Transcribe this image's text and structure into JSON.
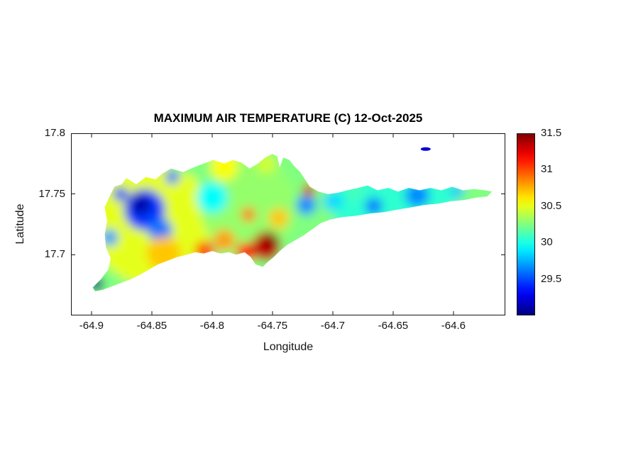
{
  "figure": {
    "background": "#ffffff",
    "axis_color": "#151515"
  },
  "chart_data": {
    "type": "heatmap",
    "title": "MAXIMUM AIR TEMPERATURE (C) 12-Oct-2025",
    "date": "12-Oct-2025",
    "xlabel": "Longitude",
    "ylabel": "Latitude",
    "xlim": [
      -64.917,
      -64.557
    ],
    "ylim": [
      17.65,
      17.8
    ],
    "grid": false,
    "xticks": {
      "values": [
        -64.9,
        -64.85,
        -64.8,
        -64.75,
        -64.7,
        -64.65,
        -64.6
      ],
      "labels": [
        "-64.9",
        "-64.85",
        "-64.8",
        "-64.75",
        "-64.7",
        "-64.65",
        "-64.6"
      ]
    },
    "yticks": {
      "values": [
        17.7,
        17.75,
        17.8
      ],
      "labels": [
        "17.7",
        "17.75",
        "17.8"
      ]
    },
    "colorbar": {
      "range": [
        29,
        31.5
      ],
      "colormap": "jet",
      "position": "right",
      "ticks": {
        "values": [
          29.5,
          30,
          30.5,
          31,
          31.5
        ],
        "labels": [
          "29.5",
          "30",
          "30.5",
          "31",
          "31.5"
        ]
      }
    },
    "base_temp": 30.25,
    "island_outline": [
      [
        -64.899,
        17.673
      ],
      [
        -64.892,
        17.68
      ],
      [
        -64.886,
        17.688
      ],
      [
        -64.884,
        17.697
      ],
      [
        -64.888,
        17.706
      ],
      [
        -64.889,
        17.717
      ],
      [
        -64.887,
        17.728
      ],
      [
        -64.889,
        17.739
      ],
      [
        -64.885,
        17.748
      ],
      [
        -64.881,
        17.756
      ],
      [
        -64.875,
        17.758
      ],
      [
        -64.871,
        17.763
      ],
      [
        -64.863,
        17.758
      ],
      [
        -64.855,
        17.764
      ],
      [
        -64.847,
        17.762
      ],
      [
        -64.841,
        17.767
      ],
      [
        -64.834,
        17.771
      ],
      [
        -64.824,
        17.768
      ],
      [
        -64.815,
        17.772
      ],
      [
        -64.807,
        17.775
      ],
      [
        -64.799,
        17.778
      ],
      [
        -64.79,
        17.775
      ],
      [
        -64.783,
        17.778
      ],
      [
        -64.776,
        17.776
      ],
      [
        -64.769,
        17.771
      ],
      [
        -64.762,
        17.775
      ],
      [
        -64.756,
        17.78
      ],
      [
        -64.75,
        17.783
      ],
      [
        -64.746,
        17.781
      ],
      [
        -64.744,
        17.772
      ],
      [
        -64.741,
        17.78
      ],
      [
        -64.736,
        17.778
      ],
      [
        -64.732,
        17.773
      ],
      [
        -64.727,
        17.768
      ],
      [
        -64.723,
        17.762
      ],
      [
        -64.719,
        17.756
      ],
      [
        -64.712,
        17.752
      ],
      [
        -64.704,
        17.75
      ],
      [
        -64.696,
        17.751
      ],
      [
        -64.688,
        17.753
      ],
      [
        -64.679,
        17.755
      ],
      [
        -64.671,
        17.757
      ],
      [
        -64.663,
        17.753
      ],
      [
        -64.654,
        17.755
      ],
      [
        -64.646,
        17.752
      ],
      [
        -64.637,
        17.755
      ],
      [
        -64.628,
        17.753
      ],
      [
        -64.619,
        17.755
      ],
      [
        -64.61,
        17.753
      ],
      [
        -64.601,
        17.756
      ],
      [
        -64.592,
        17.753
      ],
      [
        -64.583,
        17.754
      ],
      [
        -64.574,
        17.753
      ],
      [
        -64.568,
        17.752
      ],
      [
        -64.572,
        17.748
      ],
      [
        -64.581,
        17.747
      ],
      [
        -64.591,
        17.745
      ],
      [
        -64.602,
        17.744
      ],
      [
        -64.613,
        17.742
      ],
      [
        -64.624,
        17.741
      ],
      [
        -64.635,
        17.739
      ],
      [
        -64.647,
        17.737
      ],
      [
        -64.658,
        17.735
      ],
      [
        -64.669,
        17.734
      ],
      [
        -64.681,
        17.732
      ],
      [
        -64.692,
        17.731
      ],
      [
        -64.702,
        17.729
      ],
      [
        -64.71,
        17.726
      ],
      [
        -64.717,
        17.721
      ],
      [
        -64.724,
        17.716
      ],
      [
        -64.731,
        17.712
      ],
      [
        -64.738,
        17.708
      ],
      [
        -64.744,
        17.703
      ],
      [
        -64.749,
        17.698
      ],
      [
        -64.754,
        17.694
      ],
      [
        -64.758,
        17.69
      ],
      [
        -64.764,
        17.692
      ],
      [
        -64.768,
        17.698
      ],
      [
        -64.773,
        17.702
      ],
      [
        -64.78,
        17.7
      ],
      [
        -64.786,
        17.702
      ],
      [
        -64.793,
        17.701
      ],
      [
        -64.8,
        17.703
      ],
      [
        -64.807,
        17.701
      ],
      [
        -64.814,
        17.702
      ],
      [
        -64.821,
        17.7
      ],
      [
        -64.829,
        17.698
      ],
      [
        -64.837,
        17.695
      ],
      [
        -64.845,
        17.692
      ],
      [
        -64.852,
        17.688
      ],
      [
        -64.859,
        17.684
      ],
      [
        -64.867,
        17.68
      ],
      [
        -64.875,
        17.677
      ],
      [
        -64.883,
        17.674
      ],
      [
        -64.891,
        17.671
      ],
      [
        -64.897,
        17.67
      ]
    ],
    "buck_island": {
      "lon": -64.623,
      "lat": 17.787,
      "temp": 29.2
    },
    "features": [
      {
        "lon": -64.85,
        "lat": 17.725,
        "temp": 30.5,
        "r": 0.05
      },
      {
        "lon": -64.77,
        "lat": 17.74,
        "temp": 30.3,
        "r": 0.04
      },
      {
        "lon": -64.65,
        "lat": 17.745,
        "temp": 30.05,
        "r": 0.05
      },
      {
        "lon": -64.58,
        "lat": 17.752,
        "temp": 30.25,
        "r": 0.02
      },
      {
        "lon": -64.856,
        "lat": 17.737,
        "temp": 29.45,
        "r": 0.017
      },
      {
        "lon": -64.859,
        "lat": 17.741,
        "temp": 29.1,
        "r": 0.008
      },
      {
        "lon": -64.843,
        "lat": 17.72,
        "temp": 29.6,
        "r": 0.01
      },
      {
        "lon": -64.876,
        "lat": 17.75,
        "temp": 29.45,
        "r": 0.006
      },
      {
        "lon": -64.833,
        "lat": 17.764,
        "temp": 29.6,
        "r": 0.006
      },
      {
        "lon": -64.8,
        "lat": 17.747,
        "temp": 29.95,
        "r": 0.013
      },
      {
        "lon": -64.885,
        "lat": 17.714,
        "temp": 29.7,
        "r": 0.007
      },
      {
        "lon": -64.896,
        "lat": 17.676,
        "temp": 29.0,
        "r": 0.006
      },
      {
        "lon": -64.722,
        "lat": 17.741,
        "temp": 29.65,
        "r": 0.008
      },
      {
        "lon": -64.7,
        "lat": 17.744,
        "temp": 29.85,
        "r": 0.008
      },
      {
        "lon": -64.666,
        "lat": 17.74,
        "temp": 29.6,
        "r": 0.007
      },
      {
        "lon": -64.63,
        "lat": 17.749,
        "temp": 29.65,
        "r": 0.01
      },
      {
        "lon": -64.597,
        "lat": 17.752,
        "temp": 29.8,
        "r": 0.006
      },
      {
        "lon": -64.84,
        "lat": 17.701,
        "temp": 30.7,
        "r": 0.014
      },
      {
        "lon": -64.806,
        "lat": 17.703,
        "temp": 31.0,
        "r": 0.008
      },
      {
        "lon": -64.79,
        "lat": 17.712,
        "temp": 30.8,
        "r": 0.009
      },
      {
        "lon": -64.772,
        "lat": 17.702,
        "temp": 31.1,
        "r": 0.008
      },
      {
        "lon": -64.755,
        "lat": 17.707,
        "temp": 31.35,
        "r": 0.012
      },
      {
        "lon": -64.751,
        "lat": 17.712,
        "temp": 31.5,
        "r": 0.006
      },
      {
        "lon": -64.745,
        "lat": 17.73,
        "temp": 30.7,
        "r": 0.008
      },
      {
        "lon": -64.77,
        "lat": 17.733,
        "temp": 30.9,
        "r": 0.006
      },
      {
        "lon": -64.72,
        "lat": 17.753,
        "temp": 31.3,
        "r": 0.005
      },
      {
        "lon": -64.79,
        "lat": 17.773,
        "temp": 30.55,
        "r": 0.012
      },
      {
        "lon": -64.755,
        "lat": 17.775,
        "temp": 30.45,
        "r": 0.008
      },
      {
        "lon": -64.82,
        "lat": 17.757,
        "temp": 30.5,
        "r": 0.009
      },
      {
        "lon": -64.682,
        "lat": 17.753,
        "temp": 30.1,
        "r": 0.009
      }
    ]
  }
}
